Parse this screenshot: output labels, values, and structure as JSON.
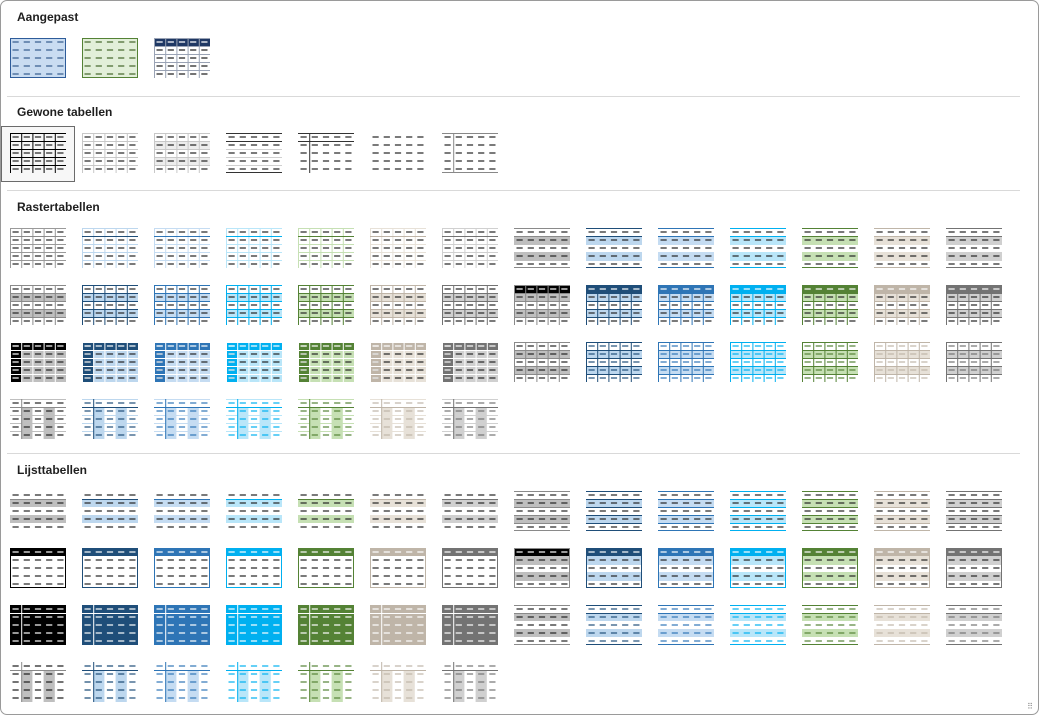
{
  "gallery": {
    "sections": [
      {
        "id": "custom",
        "title": "Aangepast",
        "rows": [
          [
            {
              "k": "custom_blue"
            },
            {
              "k": "custom_green"
            },
            {
              "k": "custom_navy"
            }
          ]
        ]
      },
      {
        "id": "plain",
        "title": "Gewone tabellen",
        "rows": [
          [
            {
              "k": "plain_grid",
              "selected": true
            },
            {
              "k": "plain_light"
            },
            {
              "k": "plain_banded"
            },
            {
              "k": "plain_lines"
            },
            {
              "k": "plain_col"
            },
            {
              "k": "plain_none"
            },
            {
              "k": "plain_col2"
            }
          ]
        ]
      },
      {
        "id": "grid",
        "title": "Rastertabellen",
        "variants": [
          "grid1light",
          "grid2",
          "grid3",
          "grid4",
          "grid5dark",
          "grid6color",
          "grid7color"
        ]
      },
      {
        "id": "list",
        "title": "Lijsttabellen",
        "variants": [
          "list1light",
          "list2",
          "list3",
          "list4",
          "list5dark",
          "list6color",
          "list7color"
        ]
      }
    ],
    "accents": [
      "#000000",
      "#1f4e79",
      "#2e75b6",
      "#00b0f0",
      "#548235",
      "#bfb5a8",
      "#737373"
    ],
    "bands": [
      "#bfbfbf",
      "#bdd7ee",
      "#c5dcf2",
      "#b9e6f9",
      "#c6e0b4",
      "#e7e1d8",
      "#d0d0d0"
    ],
    "resize_grip": "⠿"
  }
}
